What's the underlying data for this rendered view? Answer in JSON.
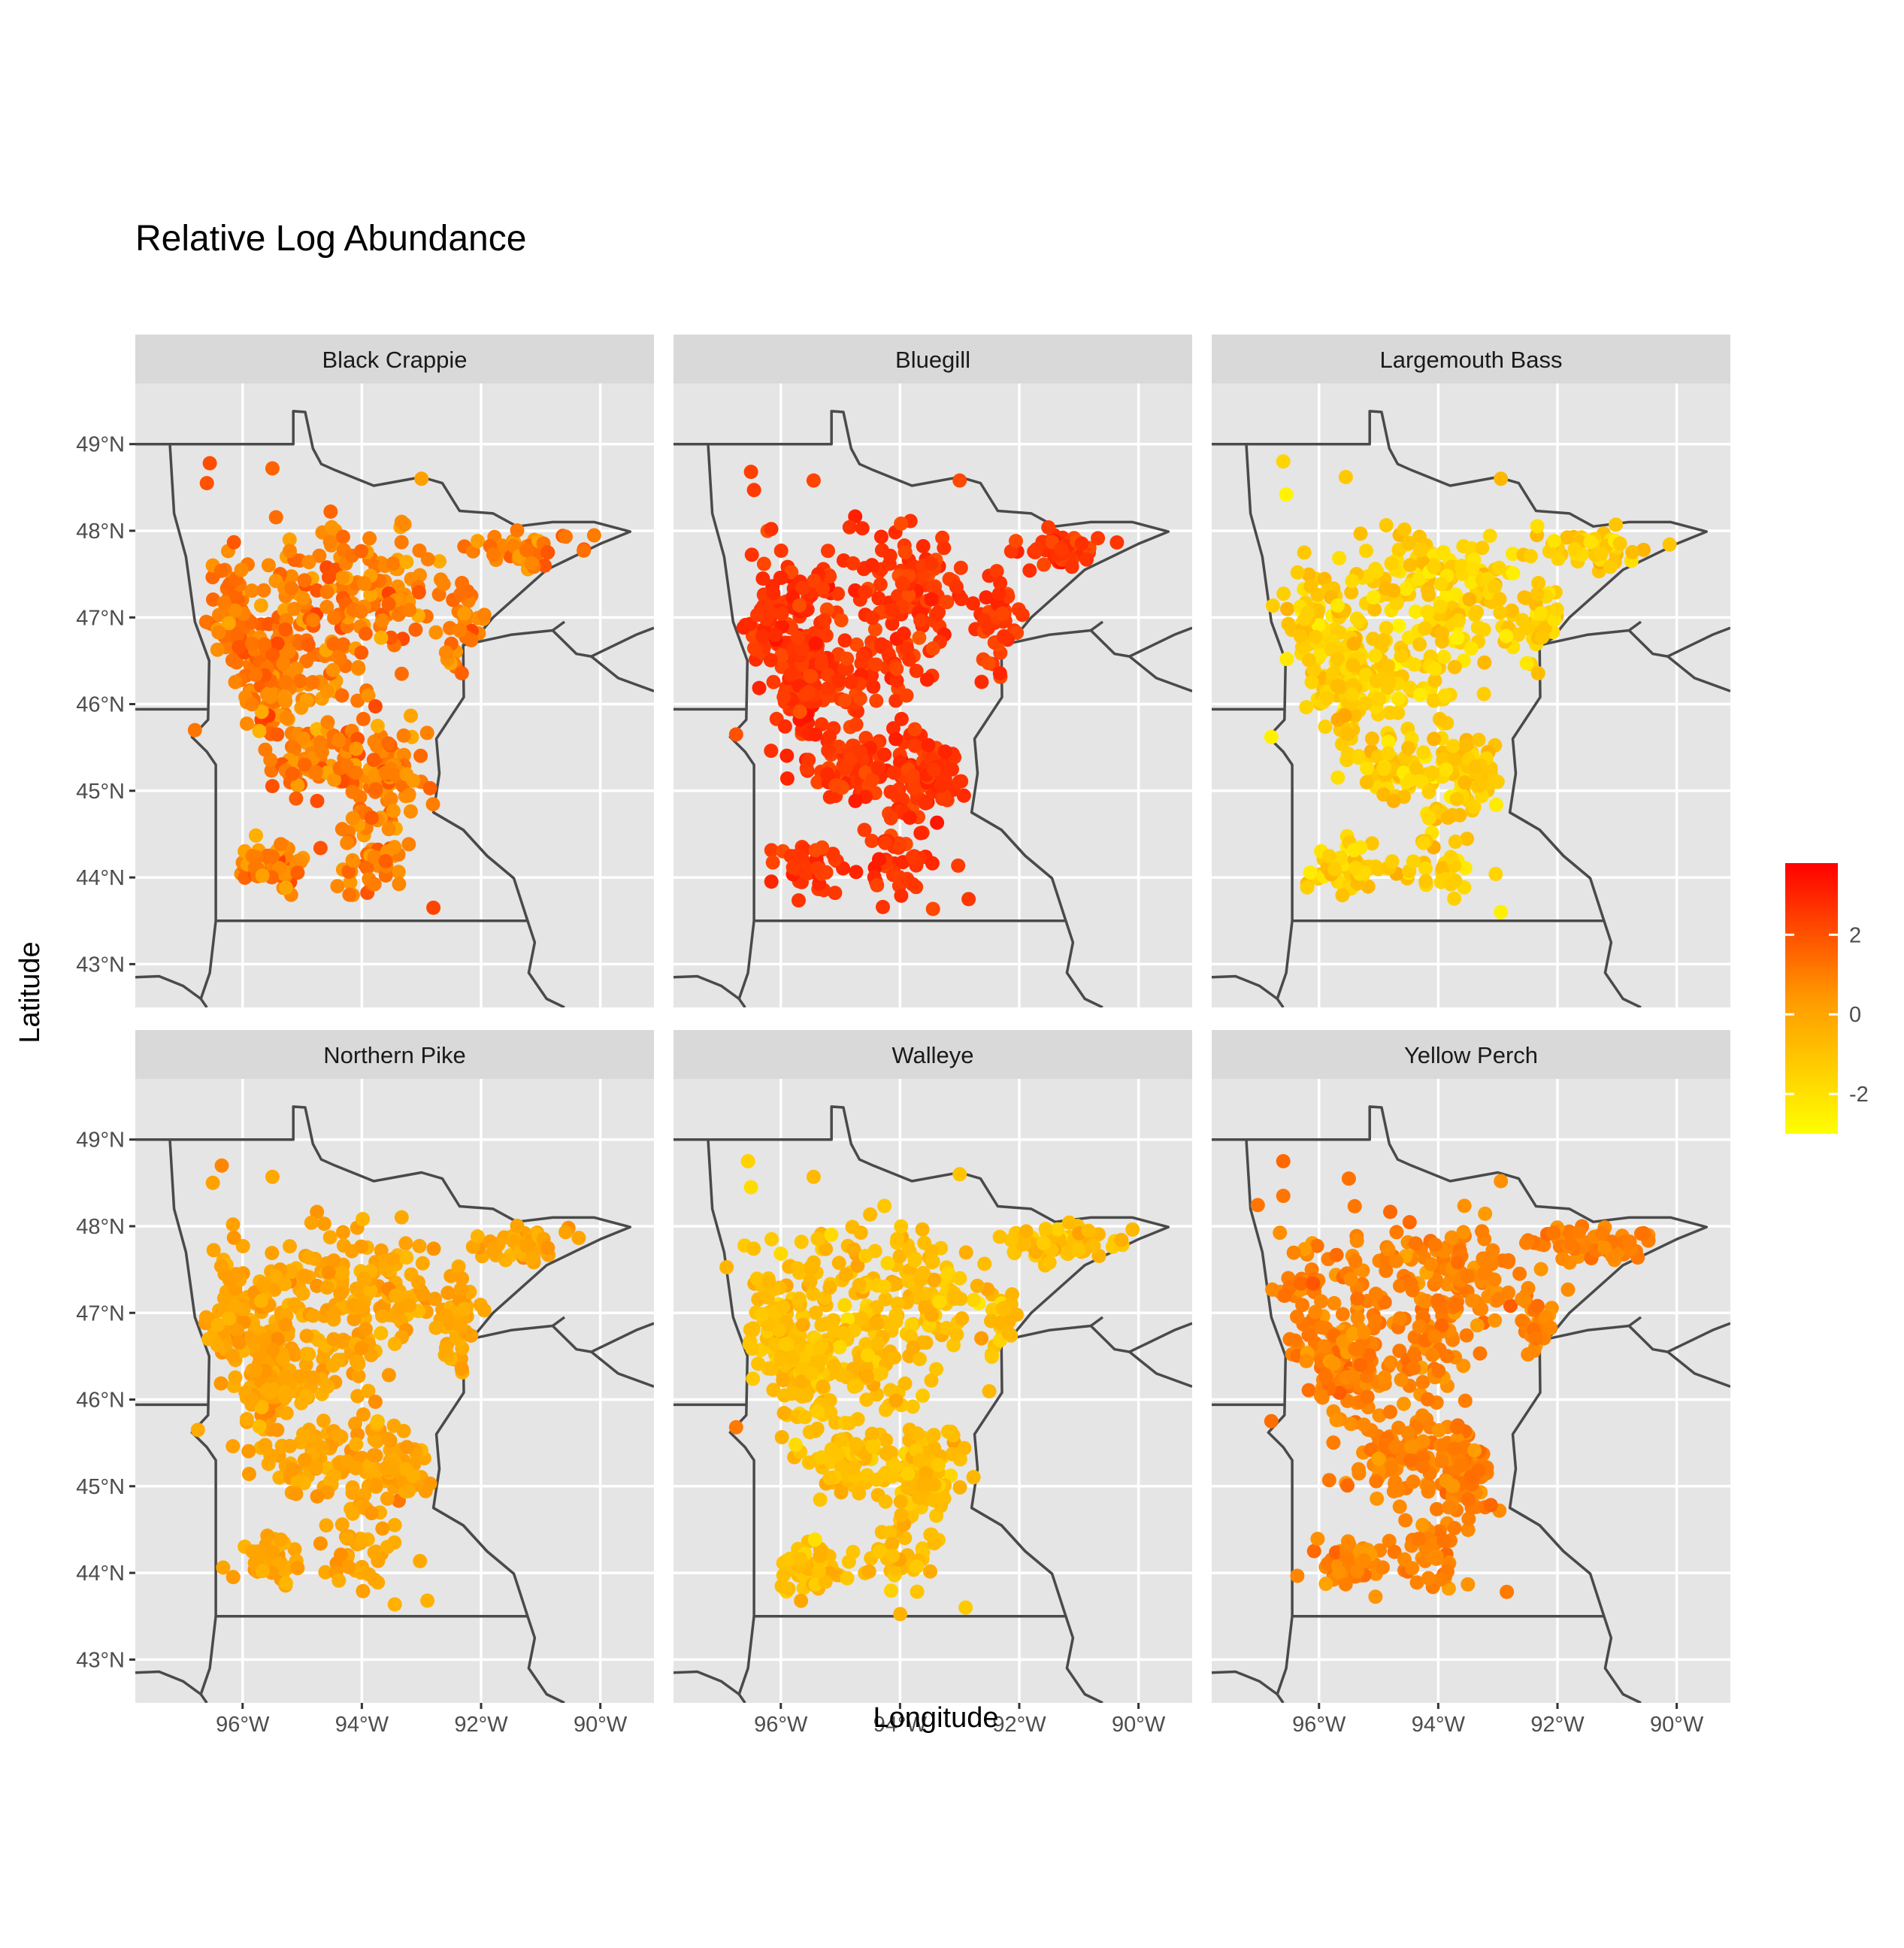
{
  "title": "Relative Log Abundance",
  "xlabel": "Longitude",
  "ylabel": "Latitude",
  "x_ticks": [
    "96°W",
    "94°W",
    "92°W",
    "90°W"
  ],
  "y_ticks": [
    "43°N",
    "44°N",
    "45°N",
    "46°N",
    "47°N",
    "48°N",
    "49°N"
  ],
  "legend": {
    "ticks": [
      "2",
      "0",
      "-2"
    ],
    "low_color": "#ffff00",
    "high_color": "#ff0000",
    "range": [
      -3,
      3.8
    ]
  },
  "colors": {
    "panel_background": "#e5e5e5",
    "strip_background": "#d9d9d9",
    "gridlines": "#ffffff",
    "borders": "#4a4a4a"
  },
  "chart_data": {
    "type": "scatter",
    "description_of_encoding": "",
    "xlim": [
      -97.8,
      -89.1
    ],
    "ylim": [
      42.5,
      49.7
    ],
    "x_tick_values": [
      -96,
      -94,
      -92,
      -90
    ],
    "y_tick_values": [
      43,
      44,
      45,
      46,
      47,
      48,
      49
    ],
    "color_scale": {
      "low": "#ffff00",
      "high": "#ff0000",
      "range": [
        -3,
        3.8
      ],
      "legend_ticks": [
        2,
        0,
        -2
      ]
    },
    "panels": [
      {
        "name": "Black Crappie",
        "typical_value": 1.0,
        "spread": 0.9,
        "notable_points": [
          {
            "lon": -96.55,
            "lat": 48.78,
            "value": 2.1
          },
          {
            "lon": -96.6,
            "lat": 48.55,
            "value": 2.0
          },
          {
            "lon": -95.5,
            "lat": 48.72,
            "value": 1.6
          },
          {
            "lon": -93.0,
            "lat": 48.6,
            "value": 0.2
          },
          {
            "lon": -96.8,
            "lat": 45.7,
            "value": 1.2
          },
          {
            "lon": -92.8,
            "lat": 43.65,
            "value": 2.3
          }
        ]
      },
      {
        "name": "Bluegill",
        "typical_value": 2.6,
        "spread": 0.5,
        "notable_points": [
          {
            "lon": -96.5,
            "lat": 48.68,
            "value": 2.4
          },
          {
            "lon": -96.45,
            "lat": 48.47,
            "value": 2.5
          },
          {
            "lon": -95.45,
            "lat": 48.58,
            "value": 2.3
          },
          {
            "lon": -93.0,
            "lat": 48.58,
            "value": 2.2
          },
          {
            "lon": -96.75,
            "lat": 45.65,
            "value": 2.0
          },
          {
            "lon": -92.85,
            "lat": 43.75,
            "value": 2.6
          }
        ]
      },
      {
        "name": "Largemouth Bass",
        "typical_value": -1.4,
        "spread": 0.8,
        "notable_points": [
          {
            "lon": -96.6,
            "lat": 48.8,
            "value": -1.6
          },
          {
            "lon": -96.55,
            "lat": 48.42,
            "value": -2.6
          },
          {
            "lon": -95.55,
            "lat": 48.62,
            "value": -1.2
          },
          {
            "lon": -92.95,
            "lat": 48.6,
            "value": -0.6
          },
          {
            "lon": -96.8,
            "lat": 45.62,
            "value": -2.5
          },
          {
            "lon": -92.95,
            "lat": 43.6,
            "value": -2.5
          }
        ]
      },
      {
        "name": "Northern Pike",
        "typical_value": 0.0,
        "spread": 0.5,
        "notable_points": [
          {
            "lon": -96.35,
            "lat": 48.7,
            "value": 0.8
          },
          {
            "lon": -96.5,
            "lat": 48.5,
            "value": 0.1
          },
          {
            "lon": -95.5,
            "lat": 48.57,
            "value": -0.1
          },
          {
            "lon": -96.75,
            "lat": 45.65,
            "value": -0.2
          },
          {
            "lon": -92.9,
            "lat": 43.68,
            "value": -0.4
          }
        ]
      },
      {
        "name": "Walleye",
        "typical_value": -0.8,
        "spread": 0.6,
        "notable_points": [
          {
            "lon": -96.55,
            "lat": 48.75,
            "value": -1.5
          },
          {
            "lon": -96.5,
            "lat": 48.45,
            "value": -1.8
          },
          {
            "lon": -95.45,
            "lat": 48.57,
            "value": -0.7
          },
          {
            "lon": -93.0,
            "lat": 48.6,
            "value": -1.0
          },
          {
            "lon": -96.75,
            "lat": 45.68,
            "value": 1.1
          },
          {
            "lon": -92.9,
            "lat": 43.6,
            "value": -1.2
          }
        ]
      },
      {
        "name": "Yellow Perch",
        "typical_value": 0.9,
        "spread": 0.5,
        "notable_points": [
          {
            "lon": -96.6,
            "lat": 48.75,
            "value": 1.5
          },
          {
            "lon": -96.6,
            "lat": 48.35,
            "value": 1.2
          },
          {
            "lon": -95.5,
            "lat": 48.55,
            "value": 1.3
          },
          {
            "lon": -92.95,
            "lat": 48.52,
            "value": 0.6
          },
          {
            "lon": -96.8,
            "lat": 45.75,
            "value": 1.4
          },
          {
            "lon": -92.85,
            "lat": 43.78,
            "value": 1.1
          }
        ]
      }
    ]
  }
}
